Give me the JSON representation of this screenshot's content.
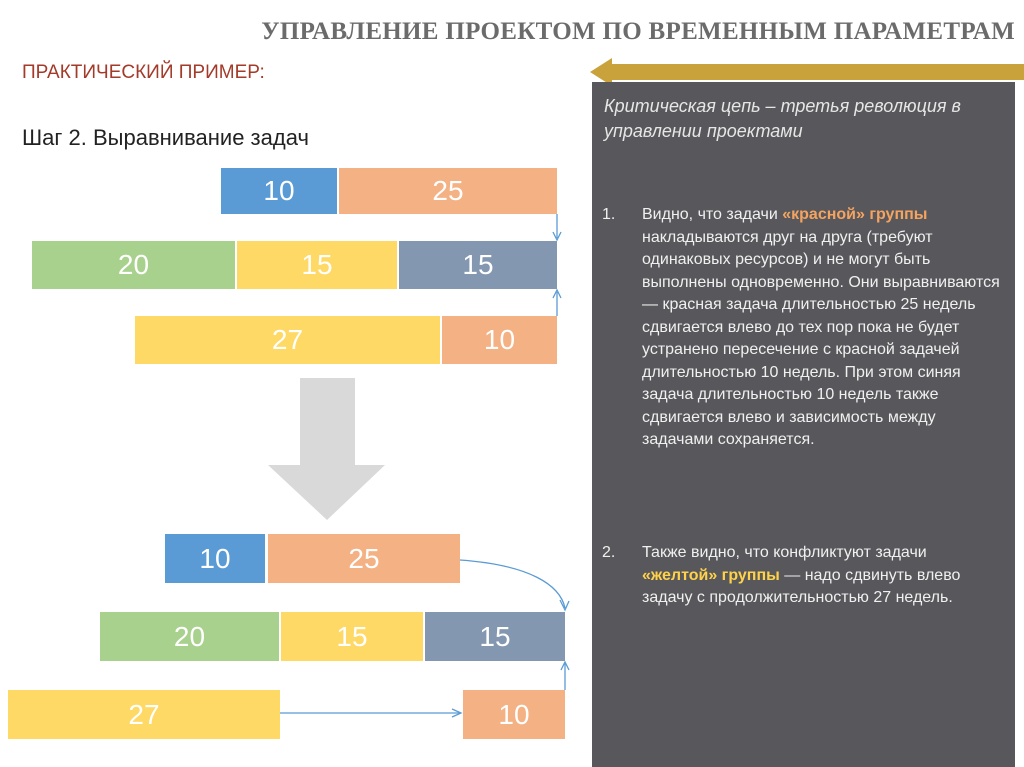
{
  "header": {
    "title": "УПРАВЛЕНИЕ ПРОЕКТОМ ПО ВРЕМЕННЫМ ПАРАМЕТРАМ",
    "subtitle": "ПРАКТИЧЕСКИЙ ПРИМЕР:"
  },
  "step": "Шаг 2. Выравнивание задач",
  "diagram": {
    "before": [
      [
        10,
        25
      ],
      [
        20,
        15,
        15
      ],
      [
        27,
        10
      ]
    ],
    "after": [
      [
        10,
        25
      ],
      [
        20,
        15,
        15
      ],
      [
        27,
        10
      ]
    ]
  },
  "panel": {
    "heading": "Критическая цепь – третья революция в управлении проектами",
    "items": [
      {
        "number": "1.",
        "before": "Видно, что задачи ",
        "highlight": "«красной» группы",
        "after": " накладываются друг на друга (требуют одинаковых ресурсов) и не могут быть выполнены одновременно. Они выравниваются — красная задача длительностью 25 недель сдвигается влево до тех пор пока не будет устранено пересечение с красной задачей длительностью 10 недель. При этом синяя задача длительностью 10 недель также сдвигается влево и зависимость между задачами сохраняется."
      },
      {
        "number": "2.",
        "before": "Также видно, что конфликтуют задачи ",
        "highlight": "«желтой» группы",
        "after": " — надо сдвинуть влево задачу с продолжительностью 27 недель."
      }
    ]
  }
}
